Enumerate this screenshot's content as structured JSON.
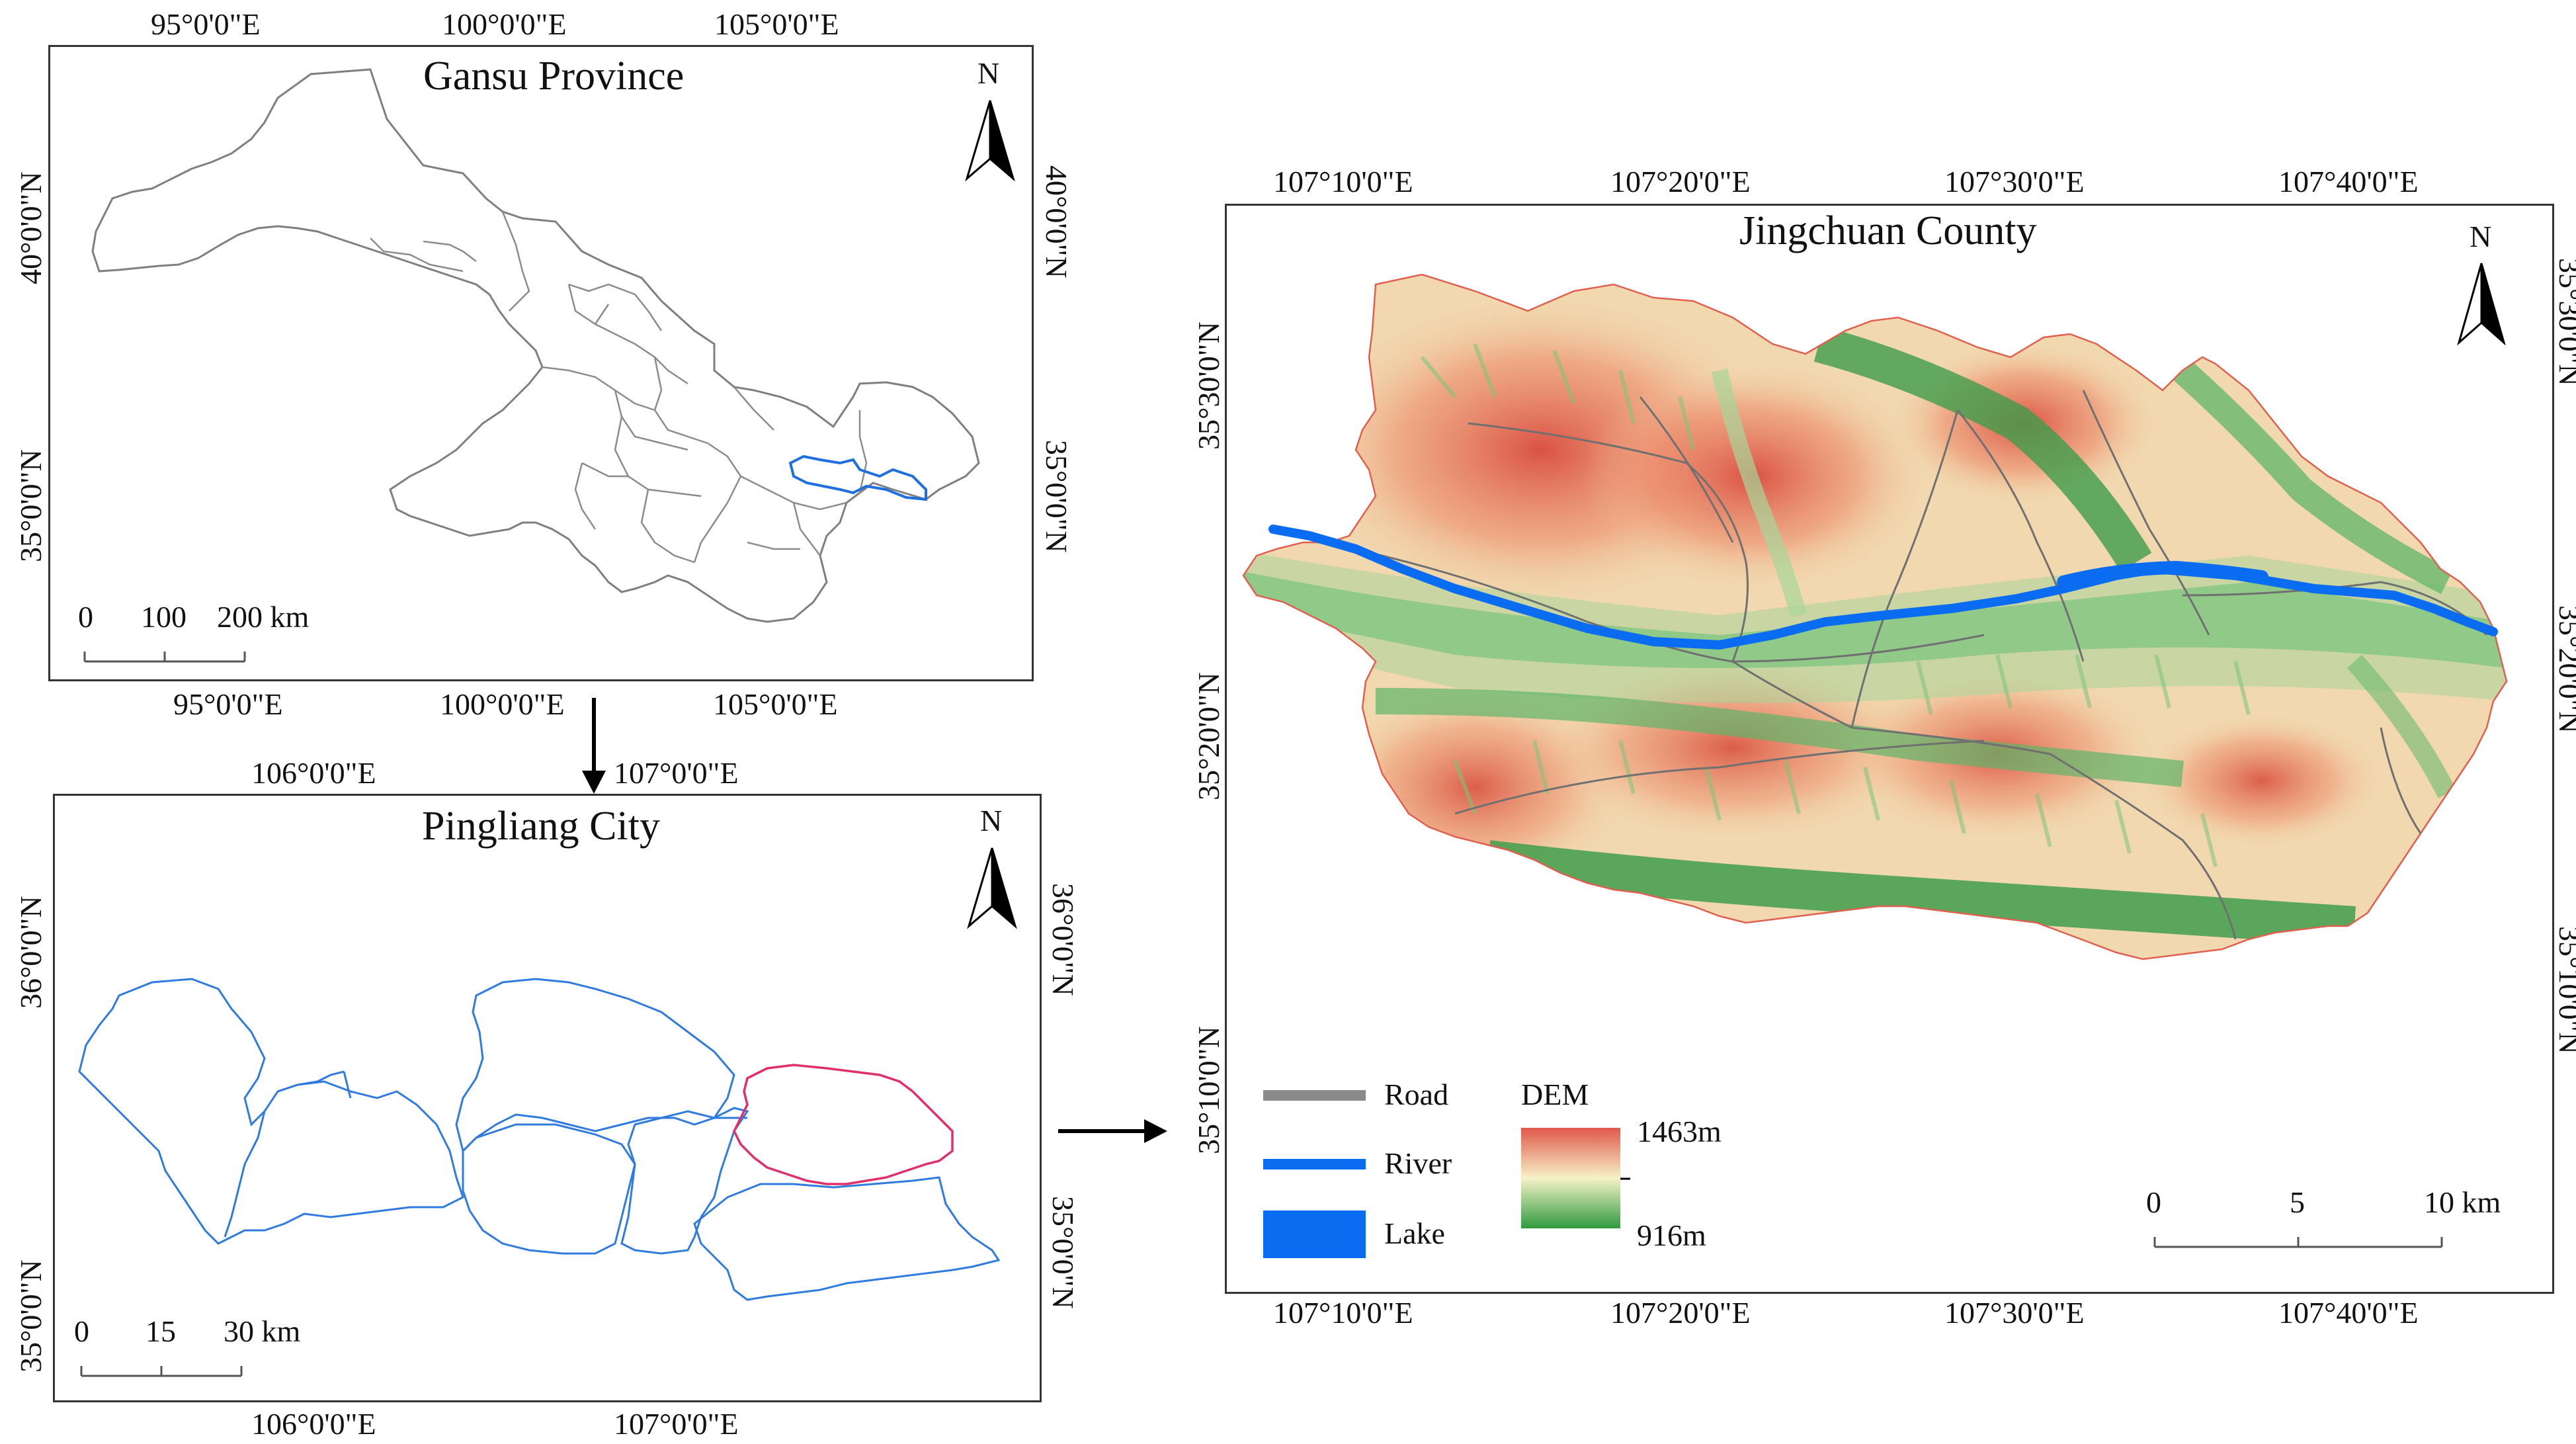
{
  "gansu": {
    "title": "Gansu Province",
    "top_lon": [
      "95°0'0\"E",
      "100°0'0\"E",
      "105°0'0\"E"
    ],
    "bottom_lon": [
      "95°0'0\"E",
      "100°0'0\"E",
      "105°0'0\"E"
    ],
    "left_lat": [
      "40°0'0\"N",
      "35°0'0\"N"
    ],
    "right_lat": [
      "40°0'0\"N",
      "35°0'0\"N"
    ],
    "scale": [
      "0",
      "100",
      "200 km"
    ],
    "north": "N",
    "outline_color": "#7f7f7f",
    "highlight_color": "#1f6fe0"
  },
  "pingliang": {
    "title": "Pingliang City",
    "top_lon": [
      "106°0'0\"E",
      "107°0'0\"E"
    ],
    "bottom_lon": [
      "106°0'0\"E",
      "107°0'0\"E"
    ],
    "left_lat": [
      "36°0'0\"N",
      "35°0'0\"N"
    ],
    "right_lat": [
      "36°0'0\"N",
      "35°0'0\"N"
    ],
    "scale": [
      "0",
      "15",
      "30 km"
    ],
    "north": "N",
    "outline_color": "#2f7be0",
    "highlight_color": "#e0306a"
  },
  "jingchuan": {
    "title": "Jingchuan County",
    "top_lon": [
      "107°10'0\"E",
      "107°20'0\"E",
      "107°30'0\"E",
      "107°40'0\"E"
    ],
    "bottom_lon": [
      "107°10'0\"E",
      "107°20'0\"E",
      "107°30'0\"E",
      "107°40'0\"E"
    ],
    "left_lat": [
      "35°30'0\"N",
      "35°20'0\"N",
      "35°10'0\"N"
    ],
    "right_lat": [
      "35°30'0\"N",
      "35°20'0\"N",
      "35°10'0\"N"
    ],
    "scale": [
      "0",
      "5",
      "10 km"
    ],
    "north": "N",
    "legend": {
      "road": "Road",
      "river": "River",
      "lake": "Lake",
      "dem_title": "DEM",
      "dem_max": "1463m",
      "dem_min": "916m"
    },
    "colors": {
      "road": "#8a8a8a",
      "river": "#0a6cf0",
      "lake": "#0a6cf0",
      "dem_high": "#e0574a",
      "dem_mid": "#f7f2c8",
      "dem_low": "#2f9a3f"
    }
  }
}
